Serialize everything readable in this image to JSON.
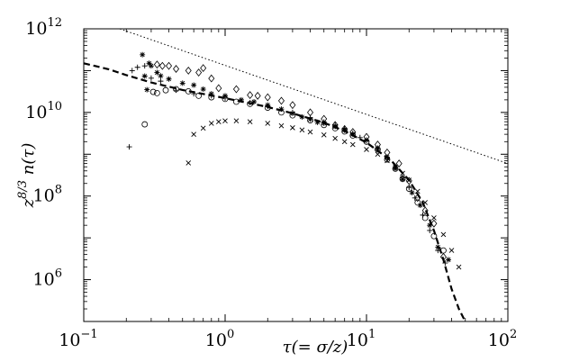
{
  "chart_data": {
    "type": "scatter",
    "xscale": "log",
    "yscale": "log",
    "xlim": [
      0.1,
      100
    ],
    "ylim": [
      100000,
      1000000000000
    ],
    "grid": false,
    "legend": "none",
    "xlabel": "τ(= σ/z)",
    "ylabel": "z^{8/3} n(τ)",
    "xticks": [
      {
        "value": 0.1,
        "base": "10",
        "exp": "−1"
      },
      {
        "value": 1,
        "base": "10",
        "exp": "0"
      },
      {
        "value": 10,
        "base": "10",
        "exp": "1"
      },
      {
        "value": 100,
        "base": "10",
        "exp": "2"
      }
    ],
    "yticks": [
      {
        "value": 1000000,
        "base": "10",
        "exp": "6"
      },
      {
        "value": 100000000,
        "base": "10",
        "exp": "8"
      },
      {
        "value": 10000000000,
        "base": "10",
        "exp": "10"
      },
      {
        "value": 1000000000000,
        "base": "10",
        "exp": "12"
      }
    ],
    "series": [
      {
        "marker": "plus",
        "points": [
          [
            0.21,
            1500000000.0
          ],
          [
            0.22,
            100000000000.0
          ],
          [
            0.24,
            120000000000.0
          ],
          [
            0.27,
            130000000000.0
          ],
          [
            0.3,
            66000000000.0
          ],
          [
            0.35,
            56000000000.0
          ],
          [
            0.45,
            34000000000.0
          ],
          [
            0.6,
            28000000000.0
          ],
          [
            0.8,
            25000000000.0
          ],
          [
            1.0,
            22000000000.0
          ],
          [
            1.5,
            17000000000.0
          ],
          [
            2.0,
            14000000000.0
          ],
          [
            3.0,
            10000000000.0
          ],
          [
            4.0,
            7500000000.0
          ],
          [
            5.0,
            5900000000.0
          ],
          [
            6.0,
            5000000000.0
          ],
          [
            7.0,
            4200000000.0
          ],
          [
            8.0,
            3200000000.0
          ],
          [
            9.0,
            2500000000.0
          ],
          [
            10.0,
            2100000000.0
          ],
          [
            12.0,
            1300000000.0
          ],
          [
            14.0,
            800000000.0
          ],
          [
            16.0,
            500000000.0
          ],
          [
            18.0,
            280000000.0
          ],
          [
            20.0,
            160000000.0
          ],
          [
            22.0,
            90000000.0
          ],
          [
            25.0,
            35000000.0
          ],
          [
            28.0,
            15000000.0
          ],
          [
            32.0,
            5000000.0
          ],
          [
            36.0,
            2500000.0
          ]
        ]
      },
      {
        "marker": "asterisk",
        "points": [
          [
            0.26,
            240000000000.0
          ],
          [
            0.27,
            74000000000.0
          ],
          [
            0.28,
            35000000000.0
          ],
          [
            0.29,
            150000000000.0
          ],
          [
            0.3,
            130000000000.0
          ],
          [
            0.33,
            90000000000.0
          ],
          [
            0.35,
            75000000000.0
          ],
          [
            0.4,
            63000000000.0
          ],
          [
            0.5,
            50000000000.0
          ],
          [
            0.6,
            45000000000.0
          ],
          [
            0.7,
            36000000000.0
          ],
          [
            0.8,
            28000000000.0
          ],
          [
            1.0,
            25000000000.0
          ],
          [
            1.3,
            20000000000.0
          ],
          [
            1.6,
            18000000000.0
          ],
          [
            2.0,
            15000000000.0
          ],
          [
            2.5,
            12000000000.0
          ],
          [
            3.0,
            9500000000.0
          ],
          [
            3.5,
            7800000000.0
          ],
          [
            4.0,
            6900000000.0
          ],
          [
            4.5,
            5800000000.0
          ],
          [
            5.0,
            5500000000.0
          ],
          [
            6.0,
            4600000000.0
          ],
          [
            7.0,
            3800000000.0
          ],
          [
            8.0,
            3000000000.0
          ],
          [
            10.0,
            2200000000.0
          ],
          [
            12.0,
            1400000000.0
          ],
          [
            14.0,
            850000000.0
          ],
          [
            16.0,
            450000000.0
          ],
          [
            18.0,
            250000000.0
          ],
          [
            21.0,
            120000000.0
          ],
          [
            24.0,
            60000000.0
          ],
          [
            28.0,
            20000000.0
          ],
          [
            32.0,
            6000000.0
          ],
          [
            38.0,
            3000000.0
          ]
        ]
      },
      {
        "marker": "diamond",
        "points": [
          [
            0.33,
            140000000000.0
          ],
          [
            0.36,
            130000000000.0
          ],
          [
            0.4,
            130000000000.0
          ],
          [
            0.45,
            110000000000.0
          ],
          [
            0.55,
            100000000000.0
          ],
          [
            0.65,
            90000000000.0
          ],
          [
            0.7,
            115000000000.0
          ],
          [
            0.8,
            65000000000.0
          ],
          [
            0.9,
            38000000000.0
          ],
          [
            1.2,
            36000000000.0
          ],
          [
            1.5,
            26000000000.0
          ],
          [
            1.7,
            25000000000.0
          ],
          [
            2.0,
            23000000000.0
          ],
          [
            2.5,
            19000000000.0
          ],
          [
            3.0,
            15000000000.0
          ],
          [
            4.0,
            10000000000.0
          ],
          [
            5.0,
            7000000000.0
          ],
          [
            6.0,
            5000000000.0
          ],
          [
            7.0,
            4000000000.0
          ],
          [
            8.0,
            3400000000.0
          ],
          [
            10.0,
            2600000000.0
          ],
          [
            12.0,
            1700000000.0
          ],
          [
            14.0,
            1100000000.0
          ],
          [
            17.0,
            600000000.0
          ],
          [
            20.0,
            230000000.0
          ],
          [
            23.0,
            90000000.0
          ],
          [
            26.0,
            45000000.0
          ],
          [
            30.0,
            22000000.0
          ],
          [
            35.0,
            3500000.0
          ]
        ]
      },
      {
        "marker": "circle",
        "points": [
          [
            0.27,
            5200000000.0
          ],
          [
            0.31,
            31000000000.0
          ],
          [
            0.33,
            29000000000.0
          ],
          [
            0.38,
            34000000000.0
          ],
          [
            0.45,
            36000000000.0
          ],
          [
            0.55,
            32000000000.0
          ],
          [
            0.65,
            25000000000.0
          ],
          [
            0.8,
            23000000000.0
          ],
          [
            1.0,
            21000000000.0
          ],
          [
            1.2,
            18000000000.0
          ],
          [
            1.5,
            16000000000.0
          ],
          [
            2.0,
            13000000000.0
          ],
          [
            2.5,
            10000000000.0
          ],
          [
            3.0,
            8500000000.0
          ],
          [
            4.0,
            6500000000.0
          ],
          [
            5.0,
            5000000000.0
          ],
          [
            6.0,
            4200000000.0
          ],
          [
            7.0,
            3500000000.0
          ],
          [
            8.0,
            2800000000.0
          ],
          [
            10.0,
            2000000000.0
          ],
          [
            12.0,
            1300000000.0
          ],
          [
            14.0,
            750000000.0
          ],
          [
            16.0,
            450000000.0
          ],
          [
            18.0,
            260000000.0
          ],
          [
            20.0,
            150000000.0
          ],
          [
            23.0,
            70000000.0
          ],
          [
            26.0,
            30000000.0
          ],
          [
            30.0,
            11000000.0
          ],
          [
            35.0,
            5000000.0
          ]
        ]
      },
      {
        "marker": "cross",
        "points": [
          [
            0.55,
            620000000.0
          ],
          [
            0.6,
            3000000000.0
          ],
          [
            0.7,
            4200000000.0
          ],
          [
            0.8,
            5500000000.0
          ],
          [
            0.9,
            6000000000.0
          ],
          [
            1.0,
            6300000000.0
          ],
          [
            1.2,
            6300000000.0
          ],
          [
            1.5,
            6000000000.0
          ],
          [
            2.0,
            5500000000.0
          ],
          [
            2.5,
            4800000000.0
          ],
          [
            3.0,
            4300000000.0
          ],
          [
            3.5,
            3800000000.0
          ],
          [
            4.0,
            3400000000.0
          ],
          [
            5.0,
            2900000000.0
          ],
          [
            6.0,
            2400000000.0
          ],
          [
            7.0,
            2000000000.0
          ],
          [
            8.0,
            1700000000.0
          ],
          [
            10.0,
            1300000000.0
          ],
          [
            12.0,
            1000000000.0
          ],
          [
            14.0,
            700000000.0
          ],
          [
            16.0,
            500000000.0
          ],
          [
            18.0,
            350000000.0
          ],
          [
            20.0,
            240000000.0
          ],
          [
            23.0,
            130000000.0
          ],
          [
            26.0,
            70000000.0
          ],
          [
            30.0,
            30000000.0
          ],
          [
            35.0,
            12000000.0
          ],
          [
            40.0,
            5000000.0
          ],
          [
            45.0,
            2000000.0
          ]
        ]
      }
    ],
    "curves": [
      {
        "style": "dashed",
        "points": [
          [
            0.1,
            150000000000.0
          ],
          [
            0.15,
            108000000000.0
          ],
          [
            0.2,
            78000000000.0
          ],
          [
            0.3,
            52000000000.0
          ],
          [
            0.5,
            34500000000.0
          ],
          [
            1.0,
            22000000000.0
          ],
          [
            2.0,
            13500000000.0
          ],
          [
            3.0,
            9500000000.0
          ],
          [
            5.0,
            5700000000.0
          ],
          [
            7.0,
            3600000000.0
          ],
          [
            10.0,
            1900000000.0
          ],
          [
            15.0,
            700000000.0
          ],
          [
            20.0,
            240000000.0
          ],
          [
            25.0,
            70000000.0
          ],
          [
            30.0,
            15000000.0
          ],
          [
            35.0,
            3000000.0
          ],
          [
            40.0,
            600000.0
          ],
          [
            45.0,
            200000.0
          ],
          [
            50.0,
            100000.0
          ]
        ]
      },
      {
        "style": "dotted",
        "points": [
          [
            0.18,
            1000000000000.0
          ],
          [
            100,
            600000000.0
          ]
        ]
      }
    ]
  }
}
